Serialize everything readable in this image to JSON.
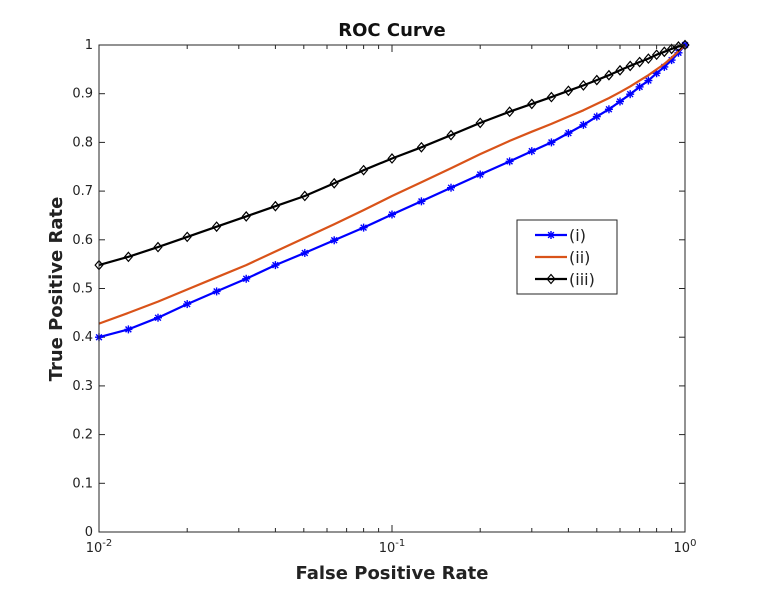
{
  "chart_data": {
    "type": "line",
    "title": "ROC Curve",
    "xlabel": "False Positive Rate",
    "ylabel": "True Positive Rate",
    "xscale": "log",
    "xlim": [
      0.01,
      1
    ],
    "ylim": [
      0,
      1
    ],
    "grid": false,
    "legend_position": "center-right",
    "x_ticks": [
      {
        "value": 0.01,
        "base": "10",
        "exp": "-2"
      },
      {
        "value": 0.1,
        "base": "10",
        "exp": "-1"
      },
      {
        "value": 1,
        "base": "10",
        "exp": "0"
      }
    ],
    "y_ticks": [
      {
        "value": 0,
        "label": "0"
      },
      {
        "value": 0.1,
        "label": "0.1"
      },
      {
        "value": 0.2,
        "label": "0.2"
      },
      {
        "value": 0.3,
        "label": "0.3"
      },
      {
        "value": 0.4,
        "label": "0.4"
      },
      {
        "value": 0.5,
        "label": "0.5"
      },
      {
        "value": 0.6,
        "label": "0.6"
      },
      {
        "value": 0.7,
        "label": "0.7"
      },
      {
        "value": 0.8,
        "label": "0.8"
      },
      {
        "value": 0.9,
        "label": "0.9"
      },
      {
        "value": 1,
        "label": "1"
      }
    ],
    "series": [
      {
        "name": "(i)",
        "color": "#0000ff",
        "marker": "asterisk",
        "x": [
          0.01,
          0.0126,
          0.0159,
          0.02,
          0.0252,
          0.0318,
          0.04,
          0.0504,
          0.0635,
          0.08,
          0.1,
          0.126,
          0.159,
          0.2,
          0.252,
          0.3,
          0.35,
          0.4,
          0.45,
          0.5,
          0.55,
          0.6,
          0.65,
          0.7,
          0.75,
          0.8,
          0.85,
          0.9,
          0.95,
          1.0
        ],
        "y": [
          0.4,
          0.416,
          0.44,
          0.468,
          0.494,
          0.52,
          0.548,
          0.573,
          0.599,
          0.625,
          0.652,
          0.679,
          0.707,
          0.734,
          0.761,
          0.782,
          0.8,
          0.819,
          0.836,
          0.853,
          0.868,
          0.884,
          0.899,
          0.914,
          0.927,
          0.942,
          0.955,
          0.969,
          0.984,
          1.0
        ]
      },
      {
        "name": "(ii)",
        "color": "#d95319",
        "marker": "none",
        "x": [
          0.01,
          0.0126,
          0.0159,
          0.02,
          0.0252,
          0.0318,
          0.04,
          0.0504,
          0.0635,
          0.08,
          0.1,
          0.126,
          0.159,
          0.2,
          0.252,
          0.3,
          0.35,
          0.4,
          0.45,
          0.5,
          0.55,
          0.6,
          0.65,
          0.7,
          0.75,
          0.8,
          0.85,
          0.9,
          0.95,
          1.0
        ],
        "y": [
          0.428,
          0.45,
          0.473,
          0.498,
          0.523,
          0.548,
          0.576,
          0.604,
          0.632,
          0.661,
          0.69,
          0.718,
          0.747,
          0.776,
          0.803,
          0.822,
          0.838,
          0.853,
          0.866,
          0.879,
          0.891,
          0.903,
          0.915,
          0.927,
          0.938,
          0.95,
          0.961,
          0.974,
          0.987,
          1.0
        ]
      },
      {
        "name": "(iii)",
        "color": "#000000",
        "marker": "diamond",
        "x": [
          0.01,
          0.0126,
          0.0159,
          0.02,
          0.0252,
          0.0318,
          0.04,
          0.0504,
          0.0635,
          0.08,
          0.1,
          0.126,
          0.159,
          0.2,
          0.252,
          0.3,
          0.35,
          0.4,
          0.45,
          0.5,
          0.55,
          0.6,
          0.65,
          0.7,
          0.75,
          0.8,
          0.85,
          0.9,
          0.95,
          1.0
        ],
        "y": [
          0.548,
          0.565,
          0.585,
          0.606,
          0.627,
          0.648,
          0.669,
          0.69,
          0.716,
          0.743,
          0.767,
          0.79,
          0.815,
          0.84,
          0.863,
          0.879,
          0.893,
          0.906,
          0.917,
          0.928,
          0.938,
          0.948,
          0.957,
          0.965,
          0.972,
          0.98,
          0.986,
          0.992,
          0.997,
          1.0
        ]
      }
    ]
  }
}
